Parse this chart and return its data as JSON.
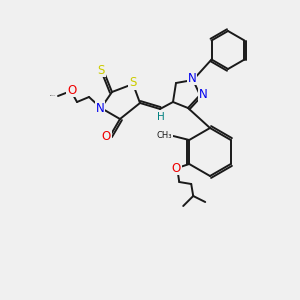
{
  "bg_color": "#f0f0f0",
  "bond_color": "#1a1a1a",
  "atom_colors": {
    "N": "#0000ee",
    "O": "#ee0000",
    "S": "#cccc00",
    "H": "#008080",
    "C": "#1a1a1a"
  },
  "font_size_atom": 8.5,
  "font_size_small": 6.5,
  "line_width": 1.4
}
